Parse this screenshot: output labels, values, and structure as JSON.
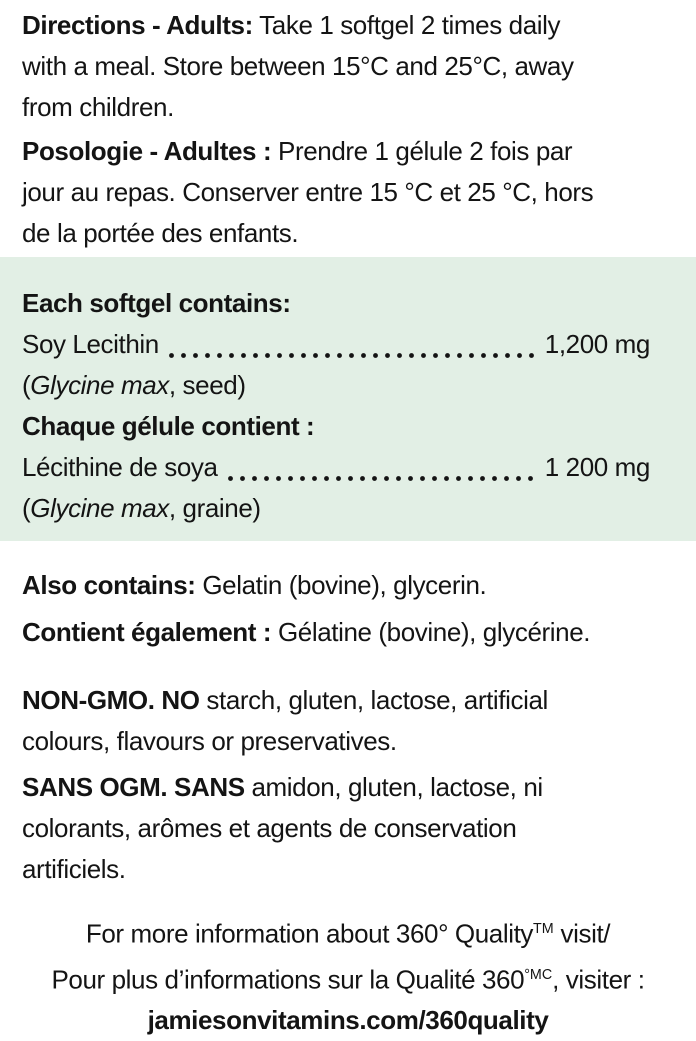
{
  "page": {
    "text_color": "#141414",
    "box_bg": "#e2efe5",
    "page_bg": "#ffffff"
  },
  "directions_en": {
    "lead": "Directions - Adults:",
    "line1_rest": " Take 1 softgel 2 times daily",
    "line2": "with a meal. Store between 15°C and 25°C, away",
    "line3": "from children."
  },
  "directions_fr": {
    "lead": "Posologie - Adultes :",
    "line1_rest": " Prendre 1 gélule 2 fois par",
    "line2": "jour au repas. Conserver entre 15 °C et 25 °C, hors",
    "line3": "de la portée des enfants."
  },
  "ingredients_box": {
    "heading_en": "Each softgel contains:",
    "ingredient_en": {
      "name": "Soy Lecithin",
      "amount": "1,200 mg",
      "source_pre": "(",
      "source_italic": "Glycine max",
      "source_post": ", seed)"
    },
    "heading_fr": "Chaque gélule contient :",
    "ingredient_fr": {
      "name": "Lécithine de soya",
      "amount": "1 200 mg",
      "source_pre": "(",
      "source_italic": "Glycine max",
      "source_post": ", graine)"
    }
  },
  "also_contains": {
    "lead_en": "Also contains:",
    "rest_en": " Gelatin (bovine), glycerin.",
    "lead_fr": "Contient également :",
    "rest_fr": " Gélatine (bovine), glycérine."
  },
  "non_gmo": {
    "lead_en": "NON-GMO. NO",
    "line1_rest_en": " starch, gluten, lactose, artificial",
    "line2_en": "colours, flavours or preservatives.",
    "lead_fr": "SANS OGM. SANS",
    "line1_rest_fr": " amidon, gluten, lactose, ni",
    "line2_fr": "colorants, arômes et agents de conservation",
    "line3_fr": "artificiels."
  },
  "footer": {
    "en_pre": "For more information about 360° Quality",
    "en_sup": "TM",
    "en_post": " visit/",
    "fr_pre": "Pour plus d’informations sur la Qualité 360",
    "fr_sup": "°MC",
    "fr_post": ", visiter :",
    "url": "jamiesonvitamins.com/360quality"
  }
}
